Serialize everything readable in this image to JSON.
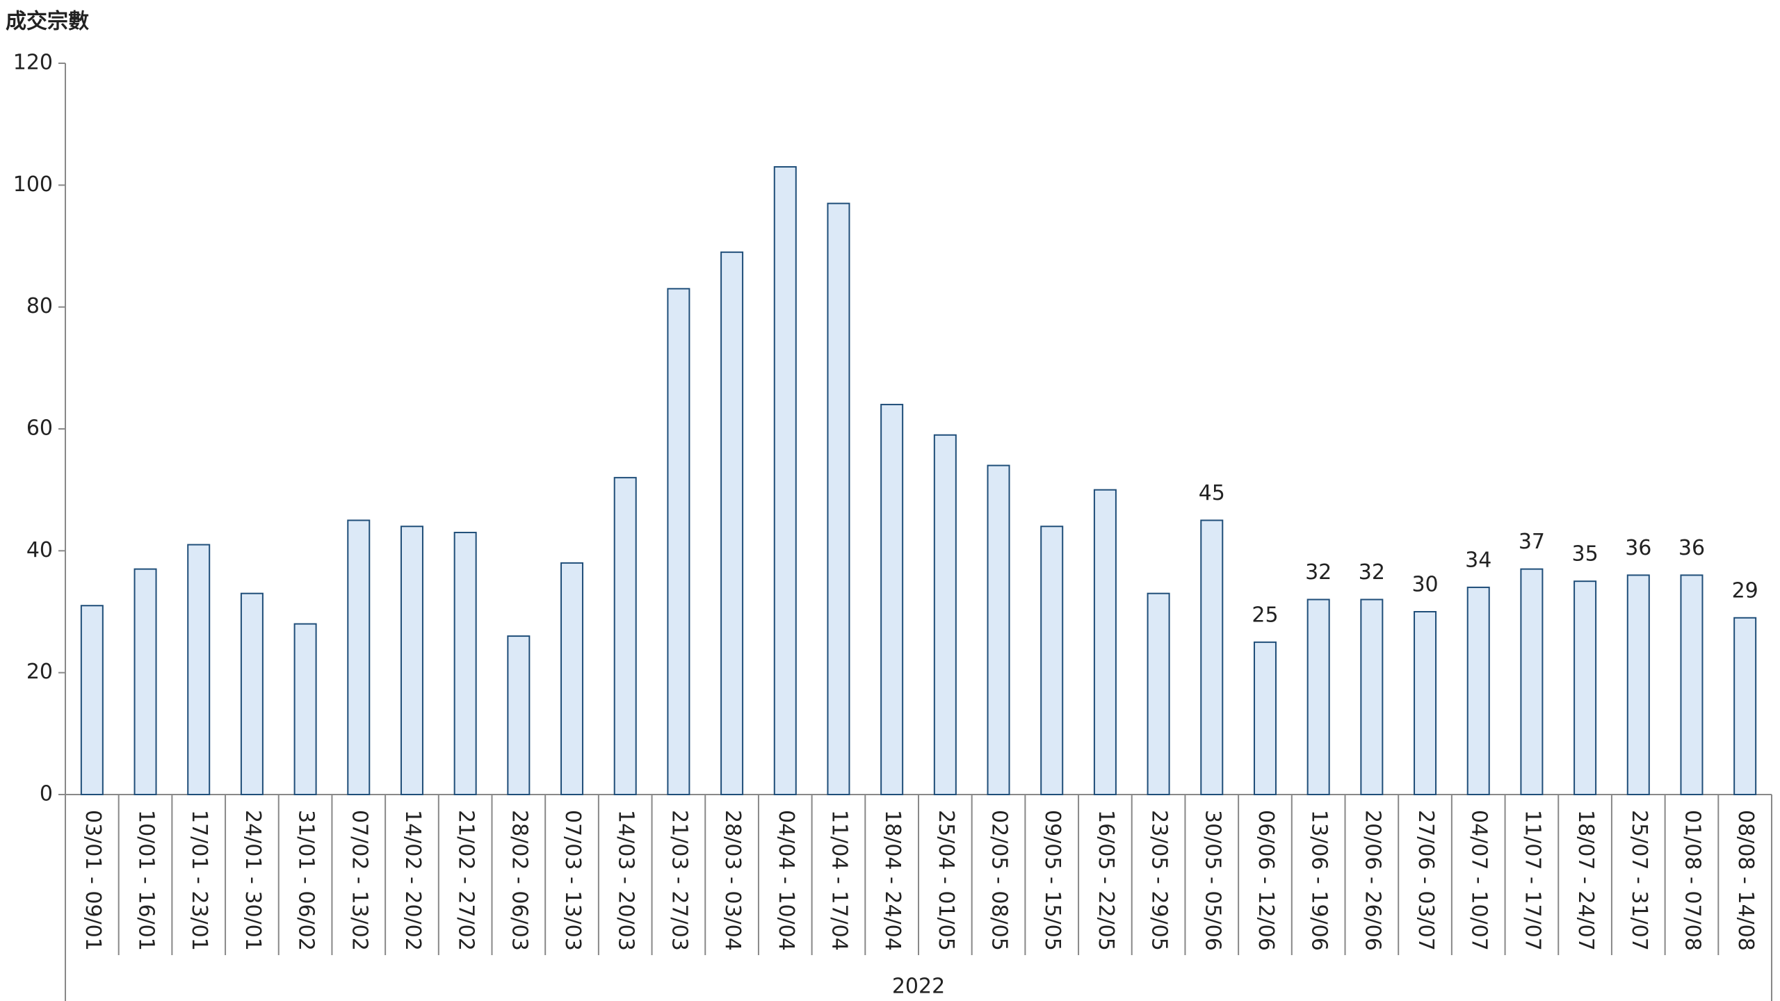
{
  "chart_data": {
    "type": "bar",
    "y_axis_label": "成交宗數",
    "x_group_label": "2022",
    "categories": [
      "03/01 - 09/01",
      "10/01 - 16/01",
      "17/01 - 23/01",
      "24/01 - 30/01",
      "31/01 - 06/02",
      "07/02 - 13/02",
      "14/02 - 20/02",
      "21/02 - 27/02",
      "28/02 - 06/03",
      "07/03 - 13/03",
      "14/03 - 20/03",
      "21/03 - 27/03",
      "28/03 - 03/04",
      "04/04 - 10/04",
      "11/04 - 17/04",
      "18/04 - 24/04",
      "25/04 - 01/05",
      "02/05 - 08/05",
      "09/05 - 15/05",
      "16/05 - 22/05",
      "23/05 - 29/05",
      "30/05 - 05/06",
      "06/06 - 12/06",
      "13/06 - 19/06",
      "20/06 - 26/06",
      "27/06 - 03/07",
      "04/07 - 10/07",
      "11/07 - 17/07",
      "18/07 - 24/07",
      "25/07 - 31/07",
      "01/08 - 07/08",
      "08/08 - 14/08"
    ],
    "values": [
      31,
      37,
      41,
      33,
      28,
      45,
      44,
      43,
      26,
      38,
      52,
      83,
      89,
      103,
      97,
      64,
      59,
      54,
      44,
      50,
      33,
      45,
      25,
      32,
      32,
      30,
      34,
      37,
      35,
      36,
      36,
      29
    ],
    "value_labels": [
      null,
      null,
      null,
      null,
      null,
      null,
      null,
      null,
      null,
      null,
      null,
      null,
      null,
      null,
      null,
      null,
      null,
      null,
      null,
      null,
      null,
      "45",
      "25",
      "32",
      "32",
      "30",
      "34",
      "37",
      "35",
      "36",
      "36",
      "29"
    ],
    "color": "#dce9f7",
    "edge_color": "#1f4e79",
    "ylim": [
      0,
      120
    ],
    "yticks": [
      0,
      20,
      40,
      60,
      80,
      100,
      120
    ],
    "grid": false
  }
}
